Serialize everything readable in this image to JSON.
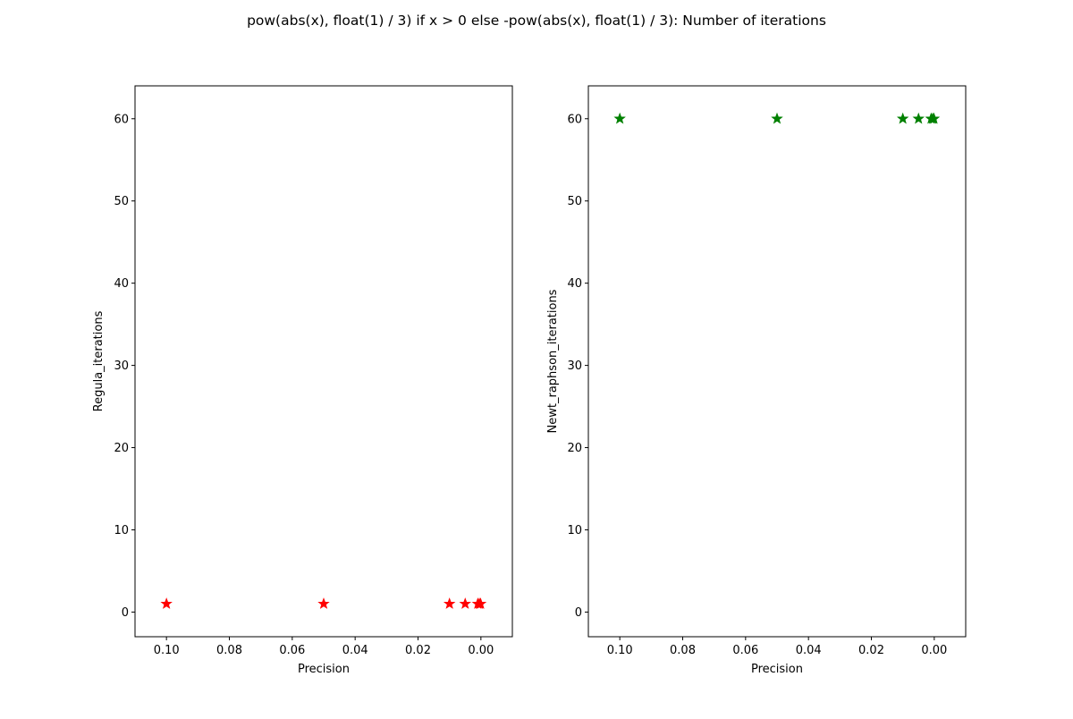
{
  "figure": {
    "suptitle": "pow(abs(x), float(1) / 3) if x > 0 else -pow(abs(x), float(1) / 3): Number of iterations"
  },
  "chart_data": [
    {
      "type": "scatter",
      "marker": "star",
      "color": "#ff0000",
      "xlabel": "Precision",
      "ylabel": "Regula_iterations",
      "xlim": [
        0.11,
        -0.01
      ],
      "ylim": [
        -3,
        64
      ],
      "x_inverted": true,
      "xticks": [
        0.1,
        0.08,
        0.06,
        0.04,
        0.02,
        0.0
      ],
      "xtick_labels": [
        "0.10",
        "0.08",
        "0.06",
        "0.04",
        "0.02",
        "0.00"
      ],
      "yticks": [
        0,
        10,
        20,
        30,
        40,
        50,
        60
      ],
      "ytick_labels": [
        "0",
        "10",
        "20",
        "30",
        "40",
        "50",
        "60"
      ],
      "grid": false,
      "points": [
        {
          "x": 0.1,
          "y": 1
        },
        {
          "x": 0.05,
          "y": 1
        },
        {
          "x": 0.01,
          "y": 1
        },
        {
          "x": 0.005,
          "y": 1
        },
        {
          "x": 0.001,
          "y": 1
        },
        {
          "x": 0.0005,
          "y": 1
        },
        {
          "x": 0.0001,
          "y": 1
        }
      ]
    },
    {
      "type": "scatter",
      "marker": "star",
      "color": "#008000",
      "xlabel": "Precision",
      "ylabel": "Newt_raphson_iterations",
      "xlim": [
        0.11,
        -0.01
      ],
      "ylim": [
        -3,
        64
      ],
      "x_inverted": true,
      "xticks": [
        0.1,
        0.08,
        0.06,
        0.04,
        0.02,
        0.0
      ],
      "xtick_labels": [
        "0.10",
        "0.08",
        "0.06",
        "0.04",
        "0.02",
        "0.00"
      ],
      "yticks": [
        0,
        10,
        20,
        30,
        40,
        50,
        60
      ],
      "ytick_labels": [
        "0",
        "10",
        "20",
        "30",
        "40",
        "50",
        "60"
      ],
      "grid": false,
      "points": [
        {
          "x": 0.1,
          "y": 60
        },
        {
          "x": 0.05,
          "y": 60
        },
        {
          "x": 0.01,
          "y": 60
        },
        {
          "x": 0.005,
          "y": 60
        },
        {
          "x": 0.001,
          "y": 60
        },
        {
          "x": 0.0005,
          "y": 60
        },
        {
          "x": 0.0001,
          "y": 60
        }
      ]
    }
  ]
}
